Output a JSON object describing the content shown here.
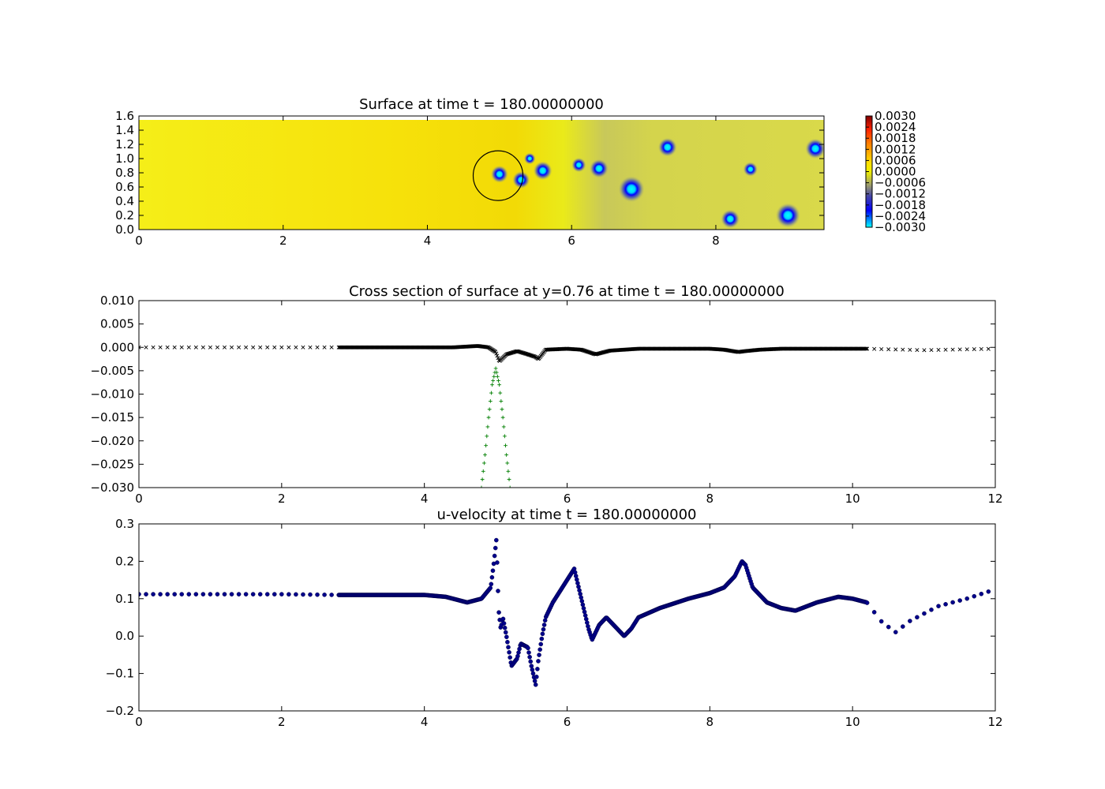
{
  "chart_data": [
    {
      "type": "heatmap",
      "title": "Surface at time t =   180.00000000",
      "xlim": [
        0,
        9.5
      ],
      "ylim": [
        0,
        1.6
      ],
      "x_ticks": [
        "0",
        "2",
        "4",
        "6",
        "8"
      ],
      "y_ticks": [
        "0.0",
        "0.2",
        "0.4",
        "0.6",
        "0.8",
        "1.0",
        "1.2",
        "1.4",
        "1.6"
      ],
      "colorbar_ticks": [
        "0.0030",
        "0.0024",
        "0.0018",
        "0.0012",
        "0.0006",
        "0.0000",
        "−0.0006",
        "−0.0012",
        "−0.0018",
        "−0.0024",
        "−0.0030"
      ],
      "colorbar_range": [
        -0.003,
        0.003
      ],
      "blobs": [
        {
          "x": 5.0,
          "y": 0.78,
          "r": 0.12
        },
        {
          "x": 5.3,
          "y": 0.7,
          "r": 0.12
        },
        {
          "x": 5.42,
          "y": 1.0,
          "r": 0.08
        },
        {
          "x": 5.6,
          "y": 0.83,
          "r": 0.13
        },
        {
          "x": 6.1,
          "y": 0.91,
          "r": 0.1
        },
        {
          "x": 6.38,
          "y": 0.86,
          "r": 0.13
        },
        {
          "x": 6.83,
          "y": 0.57,
          "r": 0.18
        },
        {
          "x": 7.33,
          "y": 1.16,
          "r": 0.13
        },
        {
          "x": 8.2,
          "y": 0.15,
          "r": 0.13
        },
        {
          "x": 8.48,
          "y": 0.85,
          "r": 0.1
        },
        {
          "x": 9.0,
          "y": 0.2,
          "r": 0.17
        },
        {
          "x": 9.38,
          "y": 1.14,
          "r": 0.14
        }
      ],
      "circle": {
        "x": 4.98,
        "y": 0.76,
        "r": 0.35
      }
    },
    {
      "type": "scatter",
      "title": "Cross section of surface at y=0.76 at time t =   180.00000000",
      "xlim": [
        0,
        12
      ],
      "ylim": [
        -0.03,
        0.01
      ],
      "x_ticks": [
        "0",
        "2",
        "4",
        "6",
        "8",
        "10",
        "12"
      ],
      "y_ticks": [
        "0.010",
        "0.005",
        "0.000",
        "−0.005",
        "−0.010",
        "−0.015",
        "−0.020",
        "−0.025",
        "−0.030"
      ],
      "series": [
        {
          "marker": "x",
          "color": "#000000",
          "x": [
            0,
            2.8,
            4.4,
            4.75,
            4.9,
            5.0,
            5.05,
            5.15,
            5.3,
            5.45,
            5.55,
            5.6,
            5.7,
            6.0,
            6.2,
            6.4,
            6.6,
            7.0,
            8.0,
            8.2,
            8.4,
            8.5,
            8.7,
            9.0,
            10.2,
            11.0,
            12.0
          ],
          "y": [
            0.0,
            0.0,
            0.0,
            0.0003,
            0.0,
            -0.001,
            -0.003,
            -0.0015,
            -0.0008,
            -0.0015,
            -0.002,
            -0.0025,
            -0.0005,
            -0.0003,
            -0.0005,
            -0.0015,
            -0.0007,
            -0.0003,
            -0.0003,
            -0.0005,
            -0.001,
            -0.0008,
            -0.0005,
            -0.0003,
            -0.0003,
            -0.0006,
            -0.0003
          ]
        },
        {
          "marker": "+",
          "color": "#007f00",
          "x": [
            4.8,
            4.85,
            4.9,
            4.95,
            5.0,
            5.05,
            5.1,
            5.15,
            5.2
          ],
          "y": [
            -0.03,
            -0.023,
            -0.015,
            -0.008,
            -0.0045,
            -0.008,
            -0.015,
            -0.023,
            -0.03
          ]
        }
      ]
    },
    {
      "type": "scatter",
      "title": "u-velocity at time t =   180.00000000",
      "xlim": [
        0,
        12
      ],
      "ylim": [
        -0.2,
        0.3
      ],
      "x_ticks": [
        "0",
        "2",
        "4",
        "6",
        "8",
        "10",
        "12"
      ],
      "y_ticks": [
        "0.3",
        "0.2",
        "0.1",
        "0.0",
        "−0.1",
        "−0.2"
      ],
      "series": [
        {
          "marker": "o",
          "color": "#00008b",
          "x": [
            0,
            1,
            2,
            2.8,
            4.0,
            4.3,
            4.6,
            4.8,
            4.93,
            4.97,
            5.01,
            5.04,
            5.07,
            5.1,
            5.15,
            5.22,
            5.3,
            5.35,
            5.45,
            5.5,
            5.56,
            5.6,
            5.65,
            5.7,
            5.8,
            6.0,
            6.1,
            6.2,
            6.3,
            6.35,
            6.45,
            6.55,
            6.7,
            6.8,
            6.9,
            7.0,
            7.3,
            7.7,
            8.0,
            8.2,
            8.35,
            8.45,
            8.5,
            8.6,
            8.8,
            9.0,
            9.2,
            9.5,
            9.8,
            10.0,
            10.2,
            10.4,
            10.6,
            10.8,
            11.2,
            11.6,
            12.0
          ],
          "y": [
            0.112,
            0.112,
            0.112,
            0.11,
            0.11,
            0.105,
            0.09,
            0.1,
            0.13,
            0.19,
            0.26,
            0.07,
            0.02,
            0.05,
            0.0,
            -0.08,
            -0.06,
            -0.02,
            -0.03,
            -0.08,
            -0.13,
            -0.06,
            0.0,
            0.05,
            0.09,
            0.15,
            0.18,
            0.1,
            0.02,
            -0.01,
            0.03,
            0.05,
            0.02,
            0.0,
            0.02,
            0.05,
            0.075,
            0.1,
            0.115,
            0.13,
            0.16,
            0.2,
            0.19,
            0.13,
            0.09,
            0.075,
            0.068,
            0.09,
            0.105,
            0.1,
            0.09,
            0.04,
            0.01,
            0.04,
            0.08,
            0.1,
            0.125
          ]
        }
      ]
    }
  ]
}
